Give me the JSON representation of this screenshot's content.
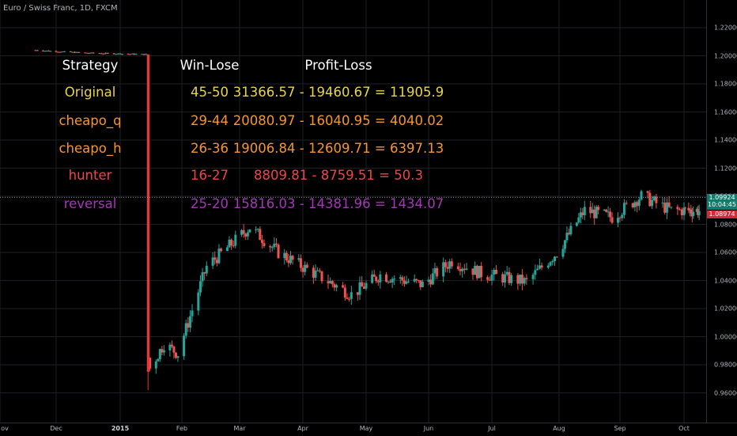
{
  "header": {
    "symbol": "Euro / Swiss Franc, 1D, FXCM"
  },
  "price_axis": {
    "ticks": [
      "1.22000",
      "1.20000",
      "1.18000",
      "1.16000",
      "1.14000",
      "1.12000",
      "1.10000",
      "1.08000",
      "1.06000",
      "1.04000",
      "1.02000",
      "1.00000",
      "0.98000",
      "0.96000"
    ],
    "last_price_tag": "1.09924",
    "countdown_tag": "10:04:45",
    "prev_price_tag": "1.08974"
  },
  "time_axis": {
    "ticks": [
      "ov",
      "Dec",
      "2015",
      "Feb",
      "Mar",
      "Apr",
      "May",
      "Jun",
      "Jul",
      "Aug",
      "Sep",
      "Oct"
    ]
  },
  "table": {
    "headers": [
      "Strategy",
      "Win-Lose",
      "Profit-Loss"
    ],
    "rows": [
      {
        "strategy": "Original",
        "winlose": "45-50",
        "profit": "31366.57 - 19460.67 = 11905.9",
        "color": "#e8d44d"
      },
      {
        "strategy": "cheapo_q",
        "winlose": "29-44",
        "profit": "20080.97 - 16040.95 = 4040.02",
        "color": "#f5962f"
      },
      {
        "strategy": "cheapo_h",
        "winlose": "26-36",
        "profit": "19006.84 - 12609.71 = 6397.13",
        "color": "#f5962f"
      },
      {
        "strategy": "hunter",
        "winlose": "16-27",
        "profit": "8809.81 - 8759.51 = 50.3",
        "color": "#f0434c"
      },
      {
        "strategy": "reversal",
        "winlose": "25-20",
        "profit": "15816.03 - 14381.96 = 1434.07",
        "color": "#a537b8"
      }
    ]
  },
  "colors": {
    "up": "#26a69a",
    "down": "#ef5350",
    "spike": "#e53935",
    "grid": "#1c1f26",
    "header_text": "#ffffff"
  },
  "chart_data": {
    "type": "candlestick",
    "title": "Euro / Swiss Franc, 1D, FXCM",
    "y_range": [
      0.95,
      1.23
    ],
    "price_line": 1.09924,
    "x_ticks": [
      "Dec",
      "2015",
      "Feb",
      "Mar",
      "Apr",
      "May",
      "Jun",
      "Jul",
      "Aug",
      "Sep",
      "Oct"
    ],
    "approx_close_path": [
      [
        "2014-11-20",
        1.204
      ],
      [
        "2014-12-15",
        1.202
      ],
      [
        "2015-01-14",
        1.201
      ],
      [
        "2015-01-15",
        0.975
      ],
      [
        "2015-01-23",
        0.995
      ],
      [
        "2015-01-30",
        0.988
      ],
      [
        "2015-02-13",
        1.05
      ],
      [
        "2015-03-06",
        1.078
      ],
      [
        "2015-03-20",
        1.06
      ],
      [
        "2015-04-24",
        1.03
      ],
      [
        "2015-05-08",
        1.044
      ],
      [
        "2015-05-29",
        1.037
      ],
      [
        "2015-06-12",
        1.054
      ],
      [
        "2015-06-26",
        1.045
      ],
      [
        "2015-07-17",
        1.039
      ],
      [
        "2015-07-31",
        1.06
      ],
      [
        "2015-08-14",
        1.09
      ],
      [
        "2015-08-28",
        1.085
      ],
      [
        "2015-09-11",
        1.1
      ],
      [
        "2015-09-25",
        1.09
      ],
      [
        "2015-10-14",
        1.0897
      ]
    ]
  }
}
